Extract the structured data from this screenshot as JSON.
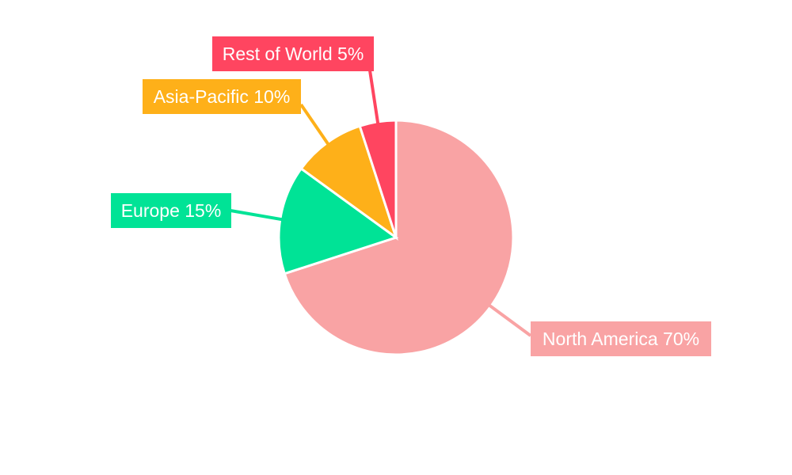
{
  "chart_data": {
    "type": "pie",
    "categories": [
      "North America",
      "Europe",
      "Asia-Pacific",
      "Rest of World"
    ],
    "values": [
      70,
      15,
      10,
      5
    ],
    "labels": [
      "North America 70%",
      "Europe 15%",
      "Asia-Pacific 10%",
      "Rest of World 5%"
    ],
    "colors": [
      "#F9A3A4",
      "#00E396",
      "#FEB019",
      "#FF4560"
    ],
    "start_angle": "top",
    "direction": "clockwise",
    "legend": "none"
  }
}
